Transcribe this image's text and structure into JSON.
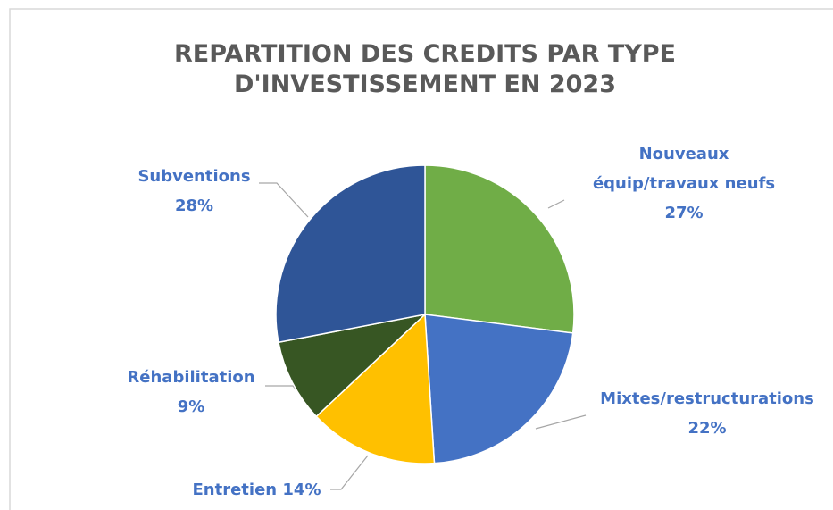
{
  "chart_data": {
    "type": "pie",
    "title": "REPARTITION DES CREDITS PAR TYPE D'INVESTISSEMENT EN 2023",
    "categories": [
      "Nouveaux équip/travaux neufs",
      "Mixtes/restructurations",
      "Entretien",
      "Réhabilitation",
      "Subventions"
    ],
    "values": [
      27,
      22,
      14,
      9,
      28
    ],
    "value_labels": [
      "27%",
      "22%",
      "14%",
      "9%",
      "28%"
    ],
    "colors": [
      "#70ad47",
      "#4472c4",
      "#ffc000",
      "#375623",
      "#2f5597"
    ]
  }
}
